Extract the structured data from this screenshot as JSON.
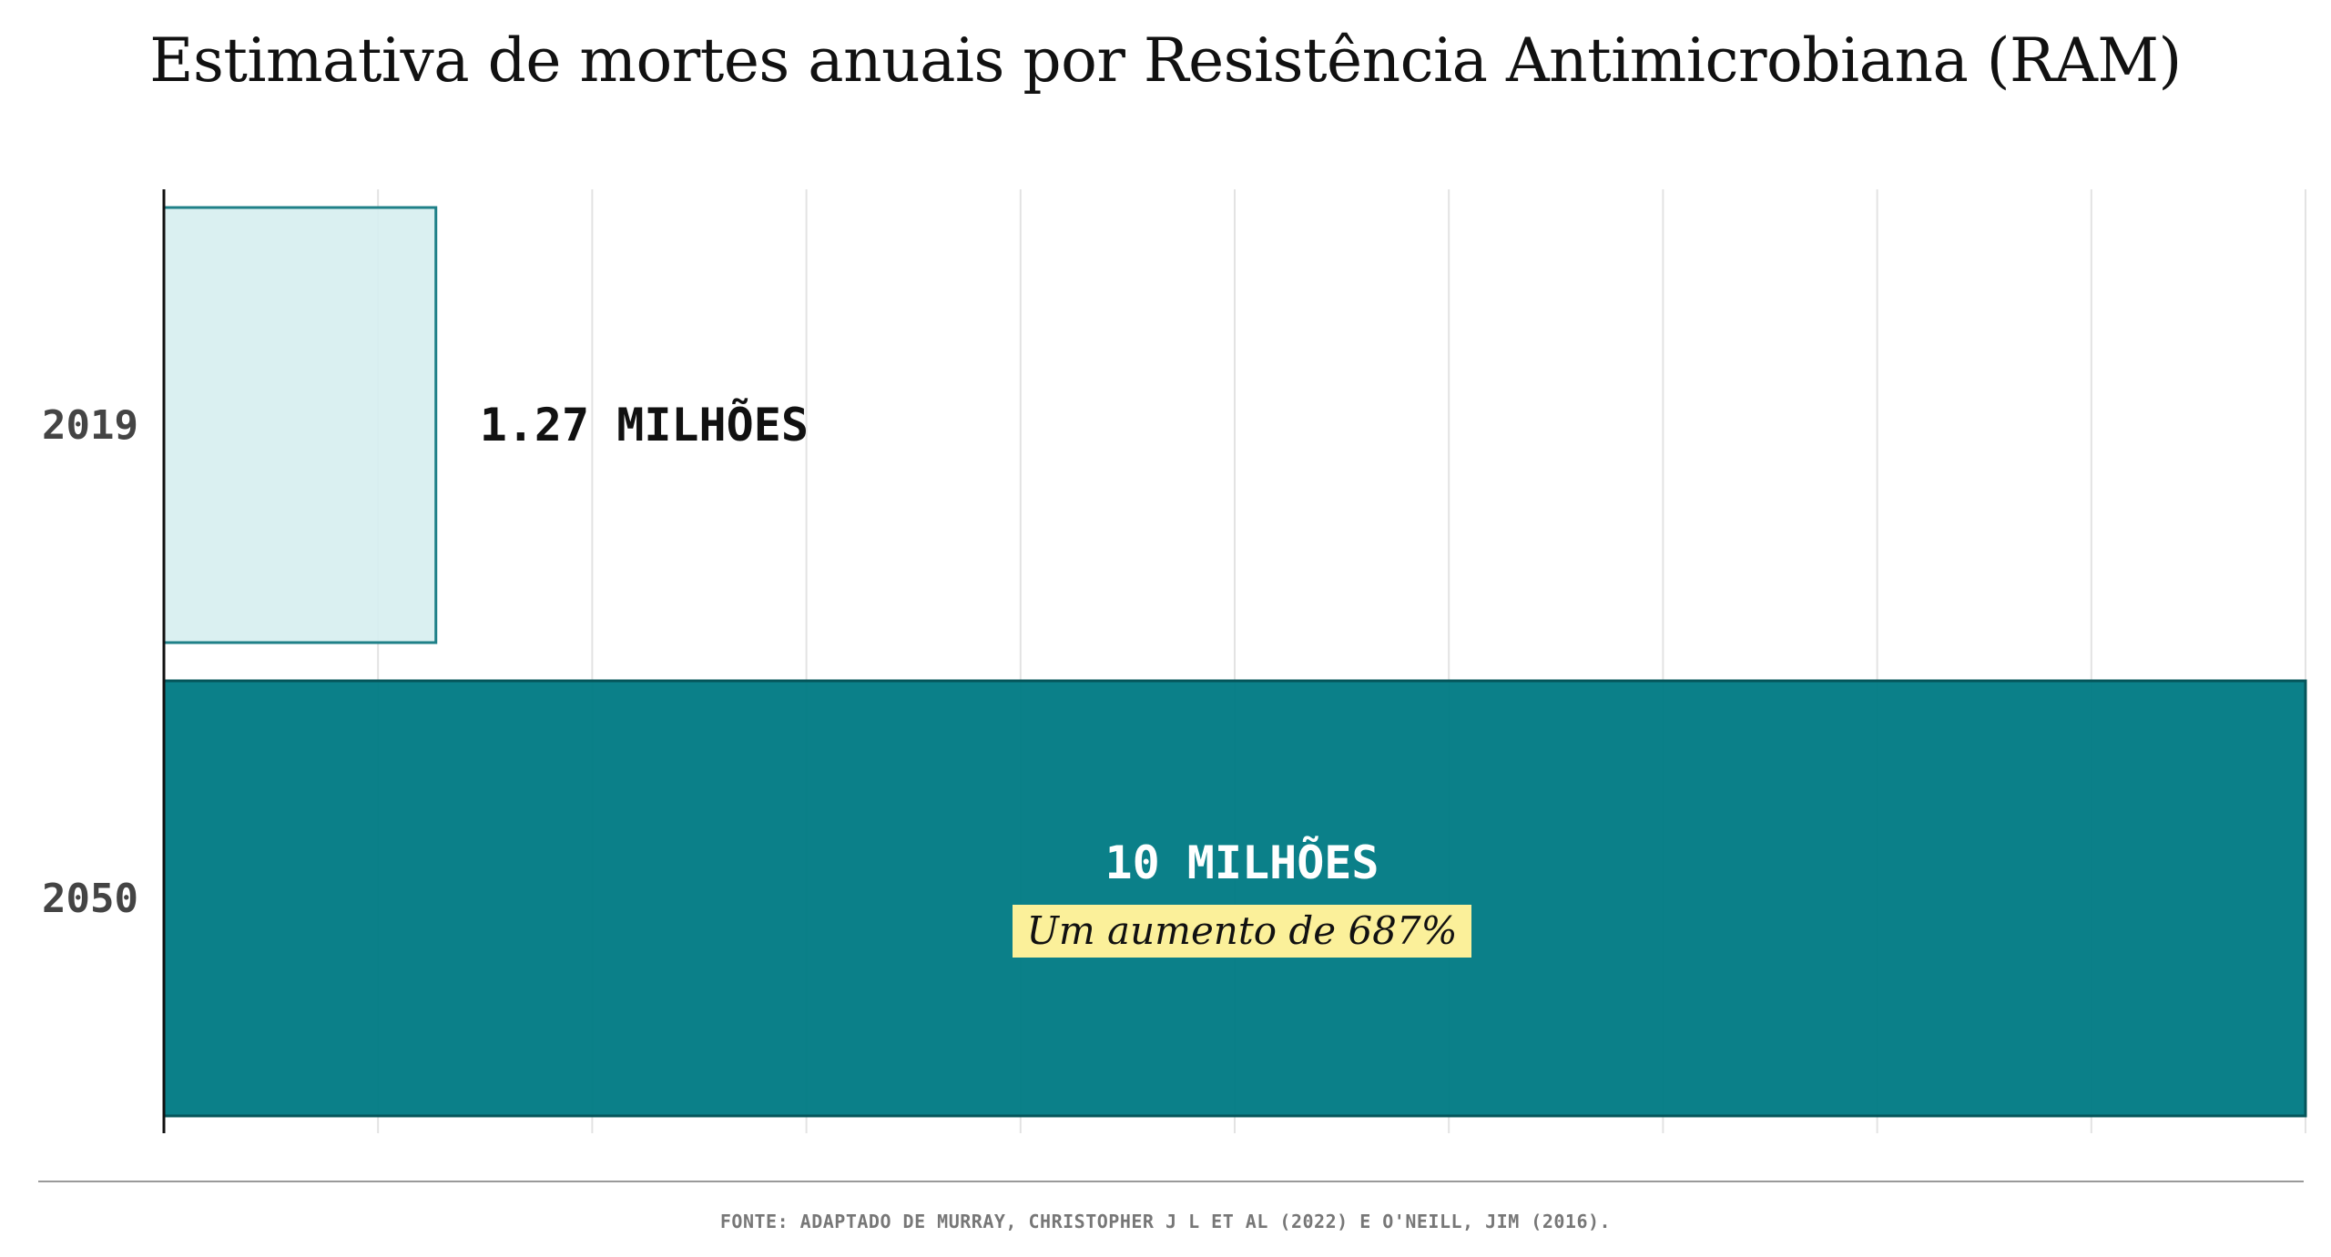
{
  "chart_data": {
    "type": "bar",
    "orientation": "horizontal",
    "title": "Estimativa de mortes anuais por Resistência Antimicrobiana (RAM)",
    "categories": [
      "2019",
      "2050"
    ],
    "values": [
      1.27,
      10
    ],
    "value_labels": [
      "1.27 MILHÕES",
      "10 MILHÕES"
    ],
    "xlim": [
      0,
      10
    ],
    "grid": true,
    "gridlines_at": [
      0,
      1,
      2,
      3,
      4,
      5,
      6,
      7,
      8,
      9,
      10
    ],
    "annotation": "Um aumento de 687%",
    "source": "FONTE: ADAPTADO DE MURRAY, CHRISTOPHER J L ET AL (2022) E O'NEILL, JIM (2016).",
    "colors": {
      "bar_2019_fill": "#d7eff0",
      "bar_2019_stroke": "#1f8088",
      "bar_2050_fill": "#017b84",
      "bar_2050_stroke": "#05555a",
      "annotation_bg": "#fbf09a",
      "gridline": "#e3e3e3"
    }
  }
}
